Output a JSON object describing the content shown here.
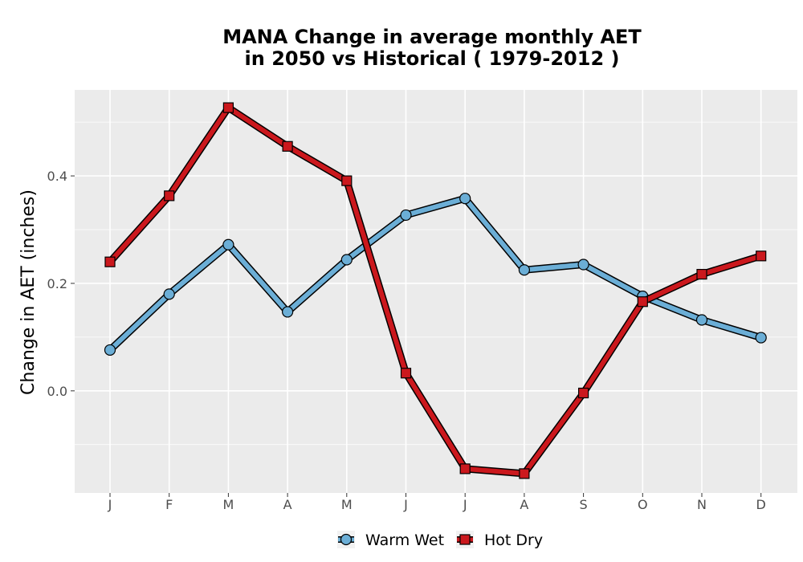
{
  "chart_data": {
    "type": "line",
    "title_lines": [
      "MANA  Change in average monthly AET",
      "in 2050 vs Historical ( 1979-2012 )"
    ],
    "xlabel": "",
    "ylabel": "Change in AET (inches)",
    "categories": [
      "J",
      "F",
      "M",
      "A",
      "M",
      "J",
      "J",
      "A",
      "S",
      "O",
      "N",
      "D"
    ],
    "ylim": [
      -0.19,
      0.56
    ],
    "yticks": [
      0.0,
      0.2,
      0.4
    ],
    "ytick_labels": [
      "0.0",
      "0.2",
      "0.4"
    ],
    "grid": true,
    "legend_position": "bottom",
    "series": [
      {
        "name": "Warm Wet",
        "values": [
          0.076,
          0.18,
          0.272,
          0.147,
          0.244,
          0.327,
          0.358,
          0.225,
          0.235,
          0.176,
          0.132,
          0.099
        ],
        "color": "#6baed6",
        "marker": "circle"
      },
      {
        "name": "Hot Dry",
        "values": [
          0.24,
          0.363,
          0.527,
          0.455,
          0.391,
          0.033,
          -0.145,
          -0.154,
          -0.004,
          0.166,
          0.217,
          0.251
        ],
        "color": "#cb181d",
        "marker": "square"
      }
    ],
    "panel_background": "#ebebeb",
    "grid_color": "#ffffff"
  }
}
